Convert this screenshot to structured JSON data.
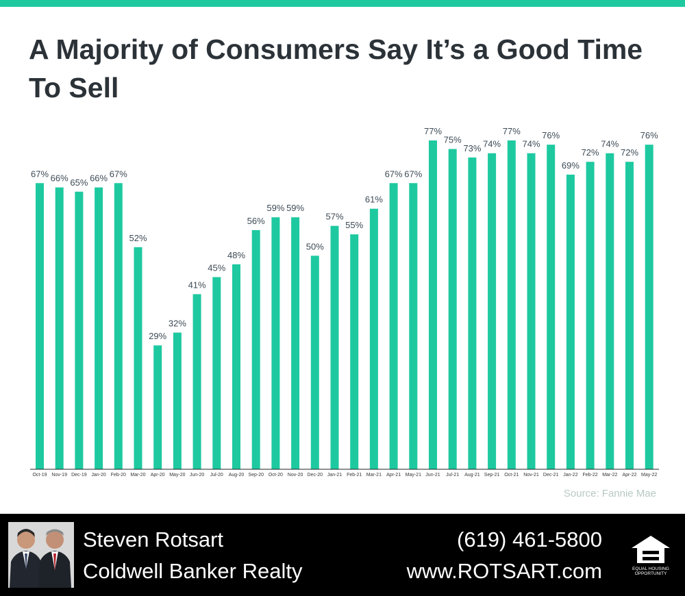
{
  "title": "A Majority of Consumers Say It’s a Good Time To Sell",
  "source": "Source: Fannie Mae",
  "colors": {
    "accent": "#1ec9a0",
    "bar": "#1ec9a0",
    "title": "#2b3238",
    "label": "#3c4a55",
    "source": "#b7c9c4",
    "footer_bg": "#000000"
  },
  "footer": {
    "agent_name": "Steven Rotsart",
    "brokerage": "Coldwell Banker Realty",
    "phone": "(619) 461-5800",
    "website": "www.ROTSART.com",
    "equal_housing_text_1": "EQUAL HOUSING",
    "equal_housing_text_2": "OPPORTUNITY"
  },
  "chart_data": {
    "type": "bar",
    "title": "A Majority of Consumers Say It’s a Good Time To Sell",
    "xlabel": "",
    "ylabel": "",
    "ylim": [
      0,
      77
    ],
    "grid": false,
    "categories": [
      "Oct-19",
      "Nov-19",
      "Dec-19",
      "Jan-20",
      "Feb-20",
      "Mar-20",
      "Apr-20",
      "May-20",
      "Jun-20",
      "Jul-20",
      "Aug-20",
      "Sep-20",
      "Oct-20",
      "Nov-20",
      "Dec-20",
      "Jan-21",
      "Feb-21",
      "Mar-21",
      "Apr-21",
      "May-21",
      "Jun-21",
      "Jul-21",
      "Aug-21",
      "Sep-21",
      "Oct-21",
      "Nov-21",
      "Dec-21",
      "Jan-22",
      "Feb-22",
      "Mar-22",
      "Apr-22",
      "May-22"
    ],
    "values": [
      67,
      66,
      65,
      66,
      67,
      52,
      29,
      32,
      41,
      45,
      48,
      56,
      59,
      59,
      50,
      57,
      55,
      61,
      67,
      67,
      77,
      75,
      73,
      74,
      77,
      74,
      76,
      69,
      72,
      74,
      72,
      76
    ],
    "labels": [
      "67%",
      "66%",
      "65%",
      "66%",
      "67%",
      "52%",
      "29%",
      "32%",
      "41%",
      "45%",
      "48%",
      "56%",
      "59%",
      "59%",
      "50%",
      "57%",
      "55%",
      "61%",
      "67%",
      "67%",
      "77%",
      "75%",
      "73%",
      "74%",
      "77%",
      "74%",
      "76%",
      "69%",
      "72%",
      "74%",
      "72%",
      "76%"
    ]
  }
}
